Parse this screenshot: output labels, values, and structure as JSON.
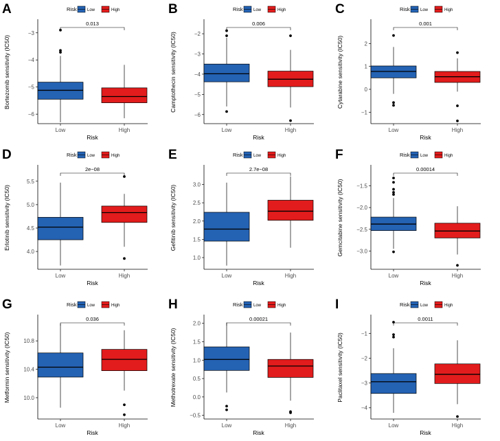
{
  "colors": {
    "low": "#2462b3",
    "high": "#e21c1c",
    "axis": "#000000",
    "tick_text": "#4d4d4d"
  },
  "chart_data": [
    {
      "type": "box",
      "panel": "A",
      "title": "",
      "xlabel": "Risk",
      "ylabel": "Bortezomib sensitivity (IC50)",
      "legend_title": "Risk",
      "legend_labels": [
        "Low",
        "High"
      ],
      "legend_position": "top",
      "categories": [
        "Low",
        "High"
      ],
      "ylim": [
        -6.35,
        -2.55
      ],
      "yticks": [
        -6,
        -5,
        -4,
        -3
      ],
      "ytick_labels": [
        "−6",
        "−5",
        "−4",
        "−3"
      ],
      "boxes": [
        {
          "name": "Low",
          "min": -6.3,
          "q1": -5.45,
          "median": -5.12,
          "q3": -4.82,
          "max": -3.85,
          "outliers": [
            -2.9,
            -3.65,
            -3.72
          ]
        },
        {
          "name": "High",
          "min": -6.15,
          "q1": -5.58,
          "median": -5.35,
          "q3": -5.03,
          "max": -4.18,
          "outliers": []
        }
      ],
      "comparison": "0.013"
    },
    {
      "type": "box",
      "panel": "B",
      "title": "",
      "xlabel": "Risk",
      "ylabel": "Camptothecin sensitivity (IC50)",
      "legend_title": "Risk",
      "legend_labels": [
        "Low",
        "High"
      ],
      "legend_position": "top",
      "categories": [
        "Low",
        "High"
      ],
      "ylim": [
        -6.45,
        -1.35
      ],
      "yticks": [
        -6,
        -5,
        -4,
        -3,
        -2
      ],
      "ytick_labels": [
        "−6",
        "−5",
        "−4",
        "−3",
        "−2"
      ],
      "boxes": [
        {
          "name": "Low",
          "min": -5.6,
          "q1": -4.38,
          "median": -3.98,
          "q3": -3.5,
          "max": -2.2,
          "outliers": [
            -1.85,
            -2.1,
            -5.85
          ]
        },
        {
          "name": "High",
          "min": -5.65,
          "q1": -4.62,
          "median": -4.25,
          "q3": -3.85,
          "max": -2.8,
          "outliers": [
            -2.1,
            -6.3
          ]
        }
      ],
      "comparison": "0.006"
    },
    {
      "type": "box",
      "panel": "C",
      "title": "",
      "xlabel": "Risk",
      "ylabel": "Cytarabine sensitivity (IC50)",
      "legend_title": "Risk",
      "legend_labels": [
        "Low",
        "High"
      ],
      "legend_position": "top",
      "categories": [
        "Low",
        "High"
      ],
      "ylim": [
        -1.5,
        3.0
      ],
      "yticks": [
        -1,
        0,
        1,
        2
      ],
      "ytick_labels": [
        "−1",
        "0",
        "1",
        "2"
      ],
      "boxes": [
        {
          "name": "Low",
          "min": -0.2,
          "q1": 0.5,
          "median": 0.78,
          "q3": 1.02,
          "max": 1.85,
          "outliers": [
            2.35,
            -0.58,
            -0.7
          ]
        },
        {
          "name": "High",
          "min": -0.1,
          "q1": 0.3,
          "median": 0.55,
          "q3": 0.78,
          "max": 1.35,
          "outliers": [
            1.6,
            -0.72,
            -1.38
          ]
        }
      ],
      "comparison": "0.001"
    },
    {
      "type": "box",
      "panel": "D",
      "title": "",
      "xlabel": "Risk",
      "ylabel": "Erlotinib sensitivity (IC50)",
      "legend_title": "Risk",
      "legend_labels": [
        "Low",
        "High"
      ],
      "legend_position": "top",
      "categories": [
        "Low",
        "High"
      ],
      "ylim": [
        3.62,
        5.82
      ],
      "yticks": [
        4.0,
        4.5,
        5.0,
        5.5
      ],
      "ytick_labels": [
        "4.0",
        "4.5",
        "5.0",
        "5.5"
      ],
      "boxes": [
        {
          "name": "Low",
          "min": 3.7,
          "q1": 4.25,
          "median": 4.52,
          "q3": 4.73,
          "max": 5.47,
          "outliers": []
        },
        {
          "name": "High",
          "min": 4.1,
          "q1": 4.62,
          "median": 4.83,
          "q3": 4.97,
          "max": 5.23,
          "outliers": [
            5.6,
            3.85
          ]
        }
      ],
      "comparison": "2e−08"
    },
    {
      "type": "box",
      "panel": "E",
      "title": "",
      "xlabel": "Risk",
      "ylabel": "Gefitinib sensitivity (IC50)",
      "legend_title": "Risk",
      "legend_labels": [
        "Low",
        "High"
      ],
      "legend_position": "top",
      "categories": [
        "Low",
        "High"
      ],
      "ylim": [
        0.68,
        3.5
      ],
      "yticks": [
        1.0,
        1.5,
        2.0,
        2.5,
        3.0
      ],
      "ytick_labels": [
        "1.0",
        "1.5",
        "2.0",
        "2.5",
        "3.0"
      ],
      "boxes": [
        {
          "name": "Low",
          "min": 0.78,
          "q1": 1.45,
          "median": 1.78,
          "q3": 2.24,
          "max": 3.05,
          "outliers": []
        },
        {
          "name": "High",
          "min": 1.27,
          "q1": 2.02,
          "median": 2.27,
          "q3": 2.57,
          "max": 3.22,
          "outliers": []
        }
      ],
      "comparison": "2.7e−08"
    },
    {
      "type": "box",
      "panel": "F",
      "title": "",
      "xlabel": "Risk",
      "ylabel": "Gemcitabine sensitivity (IC50)",
      "legend_title": "Risk",
      "legend_labels": [
        "Low",
        "High"
      ],
      "legend_position": "top",
      "categories": [
        "Low",
        "High"
      ],
      "ylim": [
        -3.42,
        -1.05
      ],
      "yticks": [
        -3.0,
        -2.5,
        -2.0,
        -1.5
      ],
      "ytick_labels": [
        "−3.0",
        "−2.5",
        "−2.0",
        "−1.5"
      ],
      "boxes": [
        {
          "name": "Low",
          "min": -2.95,
          "q1": -2.53,
          "median": -2.38,
          "q3": -2.22,
          "max": -1.78,
          "outliers": [
            -1.32,
            -1.42,
            -1.58,
            -1.65,
            -1.7,
            -3.02
          ]
        },
        {
          "name": "High",
          "min": -3.08,
          "q1": -2.7,
          "median": -2.54,
          "q3": -2.36,
          "max": -1.97,
          "outliers": [
            -3.33
          ]
        }
      ],
      "comparison": "0.00014"
    },
    {
      "type": "box",
      "panel": "G",
      "title": "",
      "xlabel": "Risk",
      "ylabel": "Metformin sensitivity (IC50)",
      "legend_title": "Risk",
      "legend_labels": [
        "Low",
        "High"
      ],
      "legend_position": "top",
      "categories": [
        "Low",
        "High"
      ],
      "ylim": [
        9.7,
        11.15
      ],
      "yticks": [
        10.0,
        10.4,
        10.8
      ],
      "ytick_labels": [
        "10.0",
        "10.4",
        "10.8"
      ],
      "boxes": [
        {
          "name": "Low",
          "min": 9.86,
          "q1": 10.29,
          "median": 10.43,
          "q3": 10.63,
          "max": 11.04,
          "outliers": []
        },
        {
          "name": "High",
          "min": 10.1,
          "q1": 10.38,
          "median": 10.54,
          "q3": 10.68,
          "max": 10.95,
          "outliers": [
            9.9,
            9.76
          ]
        }
      ],
      "comparison": "0.036"
    },
    {
      "type": "box",
      "panel": "H",
      "title": "",
      "xlabel": "Risk",
      "ylabel": "Methotrexate sensitivity (IC50)",
      "legend_title": "Risk",
      "legend_labels": [
        "Low",
        "High"
      ],
      "legend_position": "top",
      "categories": [
        "Low",
        "High"
      ],
      "ylim": [
        -0.6,
        2.2
      ],
      "yticks": [
        -0.5,
        0.0,
        0.5,
        1.0,
        1.5,
        2.0
      ],
      "ytick_labels": [
        "−0.5",
        "0.0",
        "0.5",
        "1.0",
        "1.5",
        "2.0"
      ],
      "boxes": [
        {
          "name": "Low",
          "min": 0.12,
          "q1": 0.72,
          "median": 1.02,
          "q3": 1.36,
          "max": 2.02,
          "outliers": [
            -0.25,
            -0.35
          ]
        },
        {
          "name": "High",
          "min": -0.1,
          "q1": 0.53,
          "median": 0.84,
          "q3": 1.02,
          "max": 1.75,
          "outliers": [
            -0.4,
            -0.43
          ]
        }
      ],
      "comparison": "0.00021"
    },
    {
      "type": "box",
      "panel": "I",
      "title": "",
      "xlabel": "Risk",
      "ylabel": "Paclitaxel sensitivity (IC50)",
      "legend_title": "Risk",
      "legend_labels": [
        "Low",
        "High"
      ],
      "legend_position": "top",
      "categories": [
        "Low",
        "High"
      ],
      "ylim": [
        -4.45,
        -0.3
      ],
      "yticks": [
        -4,
        -3,
        -2,
        -1
      ],
      "ytick_labels": [
        "−4",
        "−3",
        "−2",
        "−1"
      ],
      "boxes": [
        {
          "name": "Low",
          "min": -4.2,
          "q1": -3.42,
          "median": -2.95,
          "q3": -2.62,
          "max": -1.6,
          "outliers": [
            -0.55,
            -1.05,
            -1.15
          ]
        },
        {
          "name": "High",
          "min": -3.85,
          "q1": -3.02,
          "median": -2.65,
          "q3": -2.23,
          "max": -1.28,
          "outliers": [
            -4.35
          ]
        }
      ],
      "comparison": "0.0011"
    }
  ]
}
